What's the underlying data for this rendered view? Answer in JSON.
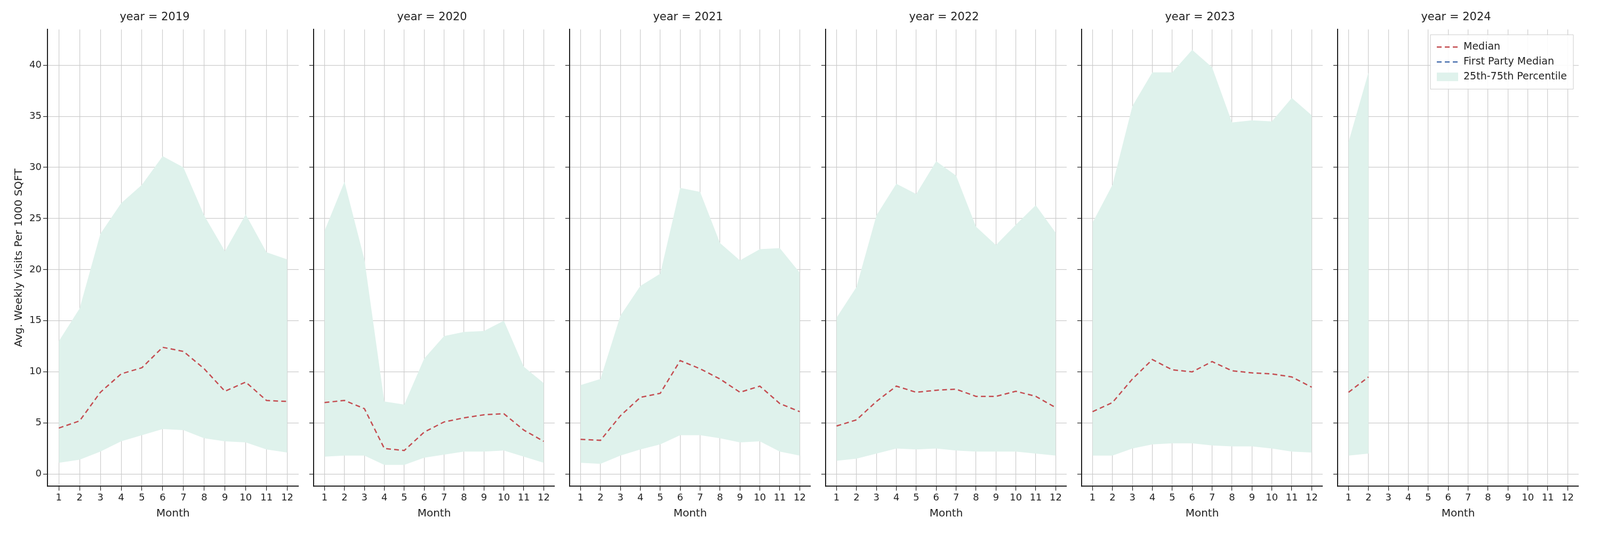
{
  "chart_data": [
    {
      "type": "line",
      "title": "year = 2019",
      "x_label": "Month",
      "y_label": "Avg. Weekly Visits Per 1000 SQFT",
      "x": [
        1,
        2,
        3,
        4,
        5,
        6,
        7,
        8,
        9,
        10,
        11,
        12
      ],
      "xlim": [
        0.45,
        12.55
      ],
      "xticks": [
        1,
        2,
        3,
        4,
        5,
        6,
        7,
        8,
        9,
        10,
        11,
        12
      ],
      "ylim": [
        -1.2,
        43.5
      ],
      "yticks": [
        0,
        5,
        10,
        15,
        20,
        25,
        30,
        35,
        40
      ],
      "grid": true,
      "series": [
        {
          "name": "Median",
          "color": "#c44e52",
          "line_style": "dashed",
          "values": [
            4.5,
            5.2,
            8.0,
            9.8,
            10.4,
            12.4,
            12.0,
            10.3,
            8.1,
            9.0,
            7.2,
            7.1
          ]
        },
        {
          "name": "First Party Median",
          "color": "#4c72b0",
          "line_style": "dashed",
          "values": [
            null,
            null,
            null,
            null,
            null,
            null,
            null,
            null,
            null,
            null,
            null,
            null
          ]
        },
        {
          "name": "25th-75th Percentile",
          "type": "band",
          "color": "#dff2ec",
          "lower": [
            1.1,
            1.4,
            2.2,
            3.2,
            3.8,
            4.4,
            4.3,
            3.5,
            3.2,
            3.1,
            2.4,
            2.1
          ],
          "upper": [
            13.0,
            16.2,
            23.5,
            26.5,
            28.3,
            31.1,
            30.0,
            25.3,
            21.8,
            25.4,
            21.7,
            21.0
          ]
        }
      ]
    },
    {
      "type": "line",
      "title": "year = 2020",
      "x_label": "Month",
      "tick_labels": "x",
      "x": [
        1,
        2,
        3,
        4,
        5,
        6,
        7,
        8,
        9,
        10,
        11,
        12
      ],
      "xlim": [
        0.45,
        12.55
      ],
      "xticks": [
        1,
        2,
        3,
        4,
        5,
        6,
        7,
        8,
        9,
        10,
        11,
        12
      ],
      "ylim": [
        -1.2,
        43.5
      ],
      "yticks": [
        0,
        5,
        10,
        15,
        20,
        25,
        30,
        35,
        40
      ],
      "grid": true,
      "series": [
        {
          "name": "Median",
          "color": "#c44e52",
          "line_style": "dashed",
          "values": [
            7.0,
            7.2,
            6.4,
            2.5,
            2.3,
            4.1,
            5.1,
            5.5,
            5.8,
            5.9,
            4.3,
            3.2
          ]
        },
        {
          "name": "First Party Median",
          "color": "#4c72b0",
          "line_style": "dashed",
          "values": [
            null,
            null,
            null,
            null,
            null,
            null,
            null,
            null,
            null,
            null,
            null,
            null
          ]
        },
        {
          "name": "25th-75th Percentile",
          "type": "band",
          "color": "#dff2ec",
          "lower": [
            1.7,
            1.8,
            1.8,
            0.9,
            0.9,
            1.6,
            1.9,
            2.2,
            2.2,
            2.3,
            1.7,
            1.1
          ],
          "upper": [
            23.8,
            28.6,
            21.0,
            7.1,
            6.8,
            11.3,
            13.5,
            13.9,
            14.0,
            15.0,
            10.5,
            8.9
          ]
        }
      ]
    },
    {
      "type": "line",
      "title": "year = 2021",
      "x_label": "Month",
      "tick_labels": "x",
      "x": [
        1,
        2,
        3,
        4,
        5,
        6,
        7,
        8,
        9,
        10,
        11,
        12
      ],
      "xlim": [
        0.45,
        12.55
      ],
      "xticks": [
        1,
        2,
        3,
        4,
        5,
        6,
        7,
        8,
        9,
        10,
        11,
        12
      ],
      "ylim": [
        -1.2,
        43.5
      ],
      "yticks": [
        0,
        5,
        10,
        15,
        20,
        25,
        30,
        35,
        40
      ],
      "grid": true,
      "series": [
        {
          "name": "Median",
          "color": "#c44e52",
          "line_style": "dashed",
          "values": [
            3.4,
            3.3,
            5.7,
            7.5,
            7.9,
            11.1,
            10.3,
            9.3,
            8.0,
            8.6,
            6.9,
            6.1
          ]
        },
        {
          "name": "First Party Median",
          "color": "#4c72b0",
          "line_style": "dashed",
          "values": [
            null,
            null,
            null,
            null,
            null,
            null,
            null,
            null,
            null,
            null,
            null,
            null
          ]
        },
        {
          "name": "25th-75th Percentile",
          "type": "band",
          "color": "#dff2ec",
          "lower": [
            1.1,
            1.0,
            1.8,
            2.4,
            2.9,
            3.8,
            3.8,
            3.5,
            3.1,
            3.2,
            2.2,
            1.8
          ],
          "upper": [
            8.7,
            9.3,
            15.5,
            18.4,
            19.6,
            28.0,
            27.6,
            22.6,
            20.9,
            22.0,
            22.1,
            19.7
          ]
        }
      ]
    },
    {
      "type": "line",
      "title": "year = 2022",
      "x_label": "Month",
      "tick_labels": "x",
      "x": [
        1,
        2,
        3,
        4,
        5,
        6,
        7,
        8,
        9,
        10,
        11,
        12
      ],
      "xlim": [
        0.45,
        12.55
      ],
      "xticks": [
        1,
        2,
        3,
        4,
        5,
        6,
        7,
        8,
        9,
        10,
        11,
        12
      ],
      "ylim": [
        -1.2,
        43.5
      ],
      "yticks": [
        0,
        5,
        10,
        15,
        20,
        25,
        30,
        35,
        40
      ],
      "grid": true,
      "series": [
        {
          "name": "Median",
          "color": "#c44e52",
          "line_style": "dashed",
          "values": [
            4.7,
            5.3,
            7.1,
            8.6,
            8.0,
            8.2,
            8.3,
            7.6,
            7.6,
            8.1,
            7.6,
            6.5
          ]
        },
        {
          "name": "First Party Median",
          "color": "#4c72b0",
          "line_style": "dashed",
          "values": [
            null,
            null,
            null,
            null,
            null,
            null,
            null,
            null,
            null,
            null,
            null,
            null
          ]
        },
        {
          "name": "25th-75th Percentile",
          "type": "band",
          "color": "#dff2ec",
          "lower": [
            1.3,
            1.5,
            2.0,
            2.5,
            2.4,
            2.5,
            2.3,
            2.2,
            2.2,
            2.2,
            2.0,
            1.8
          ],
          "upper": [
            15.3,
            18.3,
            25.3,
            28.4,
            27.4,
            30.6,
            29.2,
            24.2,
            22.4,
            24.4,
            26.3,
            23.6
          ]
        }
      ]
    },
    {
      "type": "line",
      "title": "year = 2023",
      "x_label": "Month",
      "tick_labels": "x",
      "x": [
        1,
        2,
        3,
        4,
        5,
        6,
        7,
        8,
        9,
        10,
        11,
        12
      ],
      "xlim": [
        0.45,
        12.55
      ],
      "xticks": [
        1,
        2,
        3,
        4,
        5,
        6,
        7,
        8,
        9,
        10,
        11,
        12
      ],
      "ylim": [
        -1.2,
        43.5
      ],
      "yticks": [
        0,
        5,
        10,
        15,
        20,
        25,
        30,
        35,
        40
      ],
      "grid": true,
      "series": [
        {
          "name": "Median",
          "color": "#c44e52",
          "line_style": "dashed",
          "values": [
            6.1,
            7.0,
            9.3,
            11.2,
            10.2,
            10.0,
            11.0,
            10.1,
            9.9,
            9.8,
            9.5,
            8.5
          ]
        },
        {
          "name": "First Party Median",
          "color": "#4c72b0",
          "line_style": "dashed",
          "values": [
            null,
            null,
            null,
            null,
            null,
            null,
            null,
            null,
            null,
            null,
            null,
            null
          ]
        },
        {
          "name": "25th-75th Percentile",
          "type": "band",
          "color": "#dff2ec",
          "lower": [
            1.8,
            1.8,
            2.5,
            2.9,
            3.0,
            3.0,
            2.8,
            2.7,
            2.7,
            2.5,
            2.2,
            2.1
          ],
          "upper": [
            24.6,
            28.3,
            36.0,
            39.3,
            39.3,
            41.5,
            39.8,
            34.4,
            34.6,
            34.5,
            36.8,
            35.1
          ]
        }
      ]
    },
    {
      "type": "line",
      "title": "year = 2024",
      "x_label": "Month",
      "tick_labels": "x",
      "legend": "upper right",
      "x": [
        1,
        2,
        3,
        4,
        5,
        6,
        7,
        8,
        9,
        10,
        11,
        12
      ],
      "xlim": [
        0.45,
        12.55
      ],
      "xticks": [
        1,
        2,
        3,
        4,
        5,
        6,
        7,
        8,
        9,
        10,
        11,
        12
      ],
      "ylim": [
        -1.2,
        43.5
      ],
      "yticks": [
        0,
        5,
        10,
        15,
        20,
        25,
        30,
        35,
        40
      ],
      "grid": true,
      "series": [
        {
          "name": "Median",
          "color": "#c44e52",
          "line_style": "dashed",
          "values": [
            8.0,
            9.5,
            null,
            null,
            null,
            null,
            null,
            null,
            null,
            null,
            null,
            null
          ]
        },
        {
          "name": "First Party Median",
          "color": "#4c72b0",
          "line_style": "dashed",
          "values": [
            null,
            null,
            null,
            null,
            null,
            null,
            null,
            null,
            null,
            null,
            null,
            null
          ]
        },
        {
          "name": "25th-75th Percentile",
          "type": "band",
          "color": "#dff2ec",
          "lower": [
            1.8,
            2.0,
            null,
            null,
            null,
            null,
            null,
            null,
            null,
            null,
            null,
            null
          ],
          "upper": [
            32.5,
            39.3,
            null,
            null,
            null,
            null,
            null,
            null,
            null,
            null,
            null,
            null
          ]
        }
      ]
    }
  ]
}
